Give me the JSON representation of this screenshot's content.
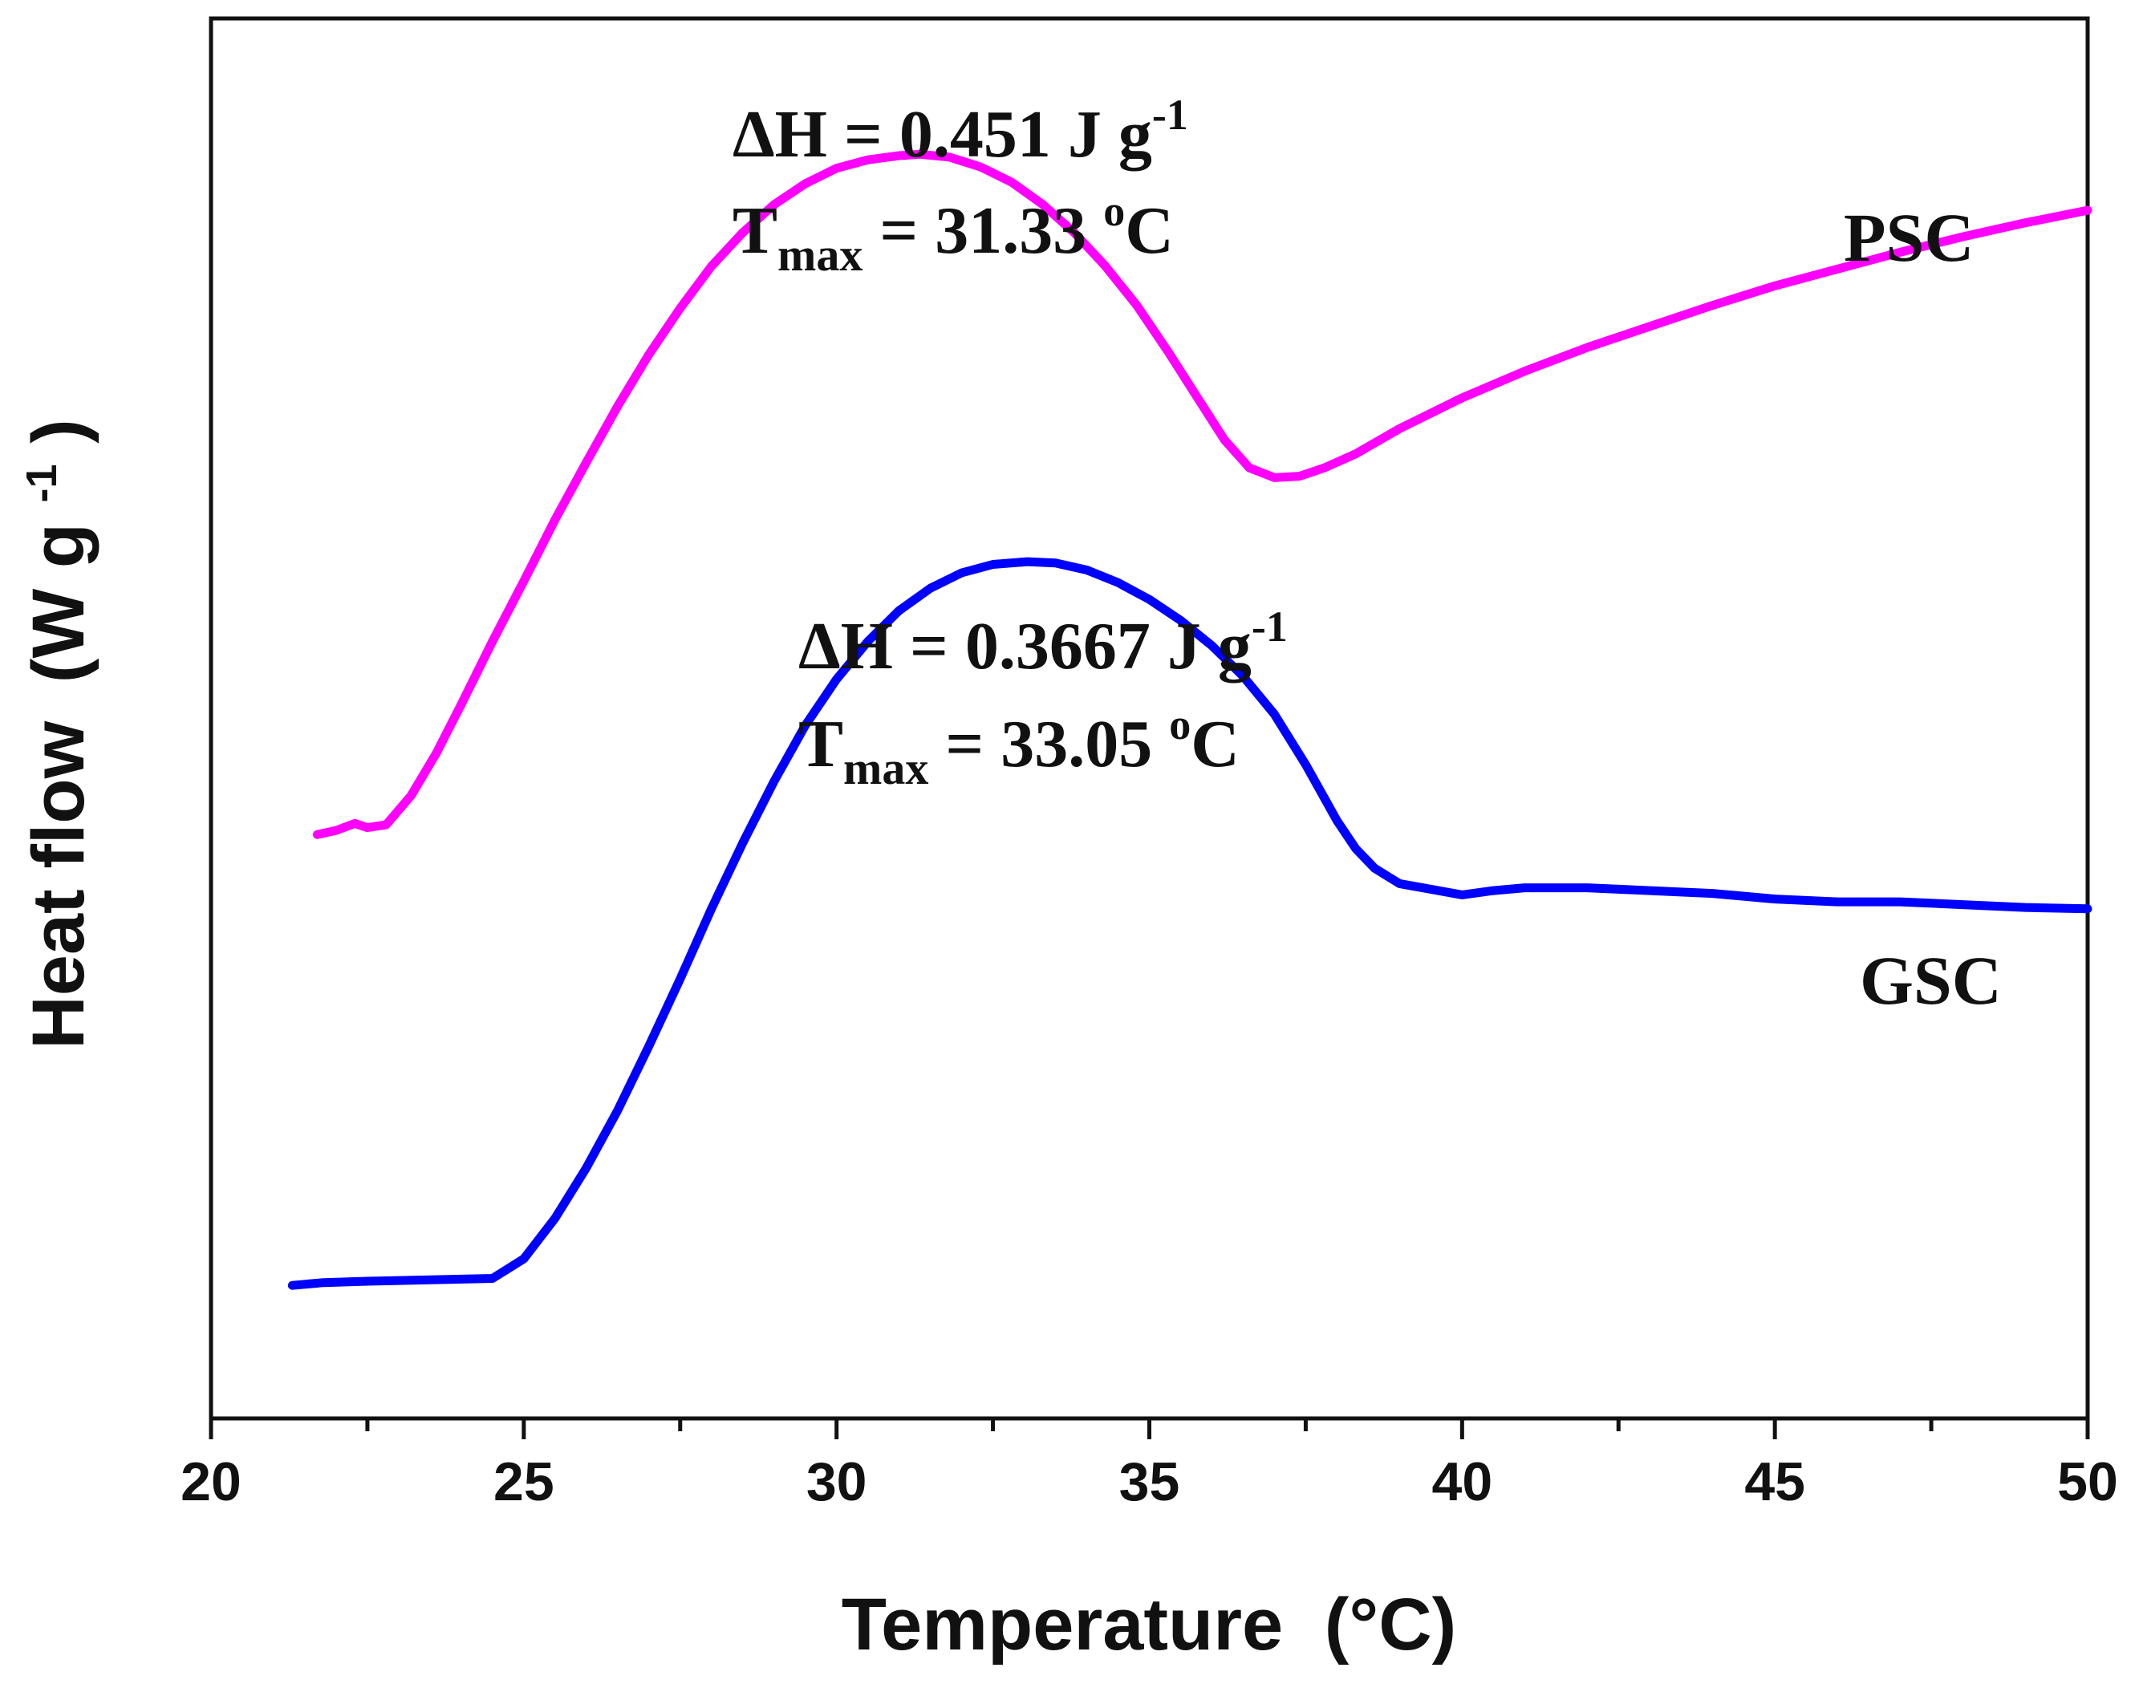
{
  "chart_data": {
    "type": "line",
    "title": "",
    "xlabel": "Temperature",
    "xlabel_unit": "(°C)",
    "ylabel": "Heat flow",
    "ylabel_unit": "(W g",
    "ylabel_unit_sup": "-1",
    "ylabel_unit_close": ")",
    "xlim": [
      20,
      50
    ],
    "ylim": [
      0,
      10
    ],
    "x_ticks": [
      20,
      25,
      30,
      35,
      40,
      45,
      50
    ],
    "x_tick_labels": [
      "20",
      "25",
      "30",
      "35",
      "40",
      "45",
      "50"
    ],
    "y_ticks_shown": false,
    "series": [
      {
        "name": "PSC",
        "color": "#ff00ff",
        "x": [
          21.7,
          22.0,
          22.3,
          22.5,
          22.8,
          23.2,
          23.6,
          24.0,
          24.5,
          25.0,
          25.5,
          26.0,
          26.5,
          27.0,
          27.5,
          28.0,
          28.5,
          29.0,
          29.5,
          30.0,
          30.5,
          31.0,
          31.33,
          31.8,
          32.3,
          32.8,
          33.3,
          33.8,
          34.3,
          34.8,
          35.3,
          35.8,
          36.2,
          36.6,
          37.0,
          37.4,
          37.8,
          38.3,
          39.0,
          40.0,
          41.0,
          42.0,
          43.0,
          44.0,
          45.0,
          46.0,
          47.0,
          48.0,
          49.0,
          50.0
        ],
        "y": [
          4.17,
          4.2,
          4.25,
          4.22,
          4.24,
          4.45,
          4.75,
          5.1,
          5.55,
          5.98,
          6.42,
          6.83,
          7.23,
          7.6,
          7.93,
          8.23,
          8.47,
          8.67,
          8.82,
          8.93,
          8.99,
          9.02,
          9.03,
          9.01,
          8.94,
          8.83,
          8.67,
          8.47,
          8.23,
          7.95,
          7.62,
          7.27,
          6.99,
          6.79,
          6.72,
          6.73,
          6.79,
          6.89,
          7.07,
          7.29,
          7.48,
          7.65,
          7.8,
          7.95,
          8.09,
          8.21,
          8.33,
          8.44,
          8.54,
          8.63
        ]
      },
      {
        "name": "GSC",
        "color": "#0000ff",
        "x": [
          21.3,
          21.8,
          22.5,
          23.5,
          24.5,
          25.0,
          25.5,
          26.0,
          26.5,
          27.0,
          27.5,
          28.0,
          28.5,
          29.0,
          29.5,
          30.0,
          30.5,
          31.0,
          31.5,
          32.0,
          32.5,
          33.05,
          33.5,
          34.0,
          34.5,
          35.0,
          35.5,
          36.0,
          36.5,
          37.0,
          37.5,
          38.0,
          38.3,
          38.6,
          39.0,
          39.5,
          40.0,
          40.5,
          41.0,
          42.0,
          43.0,
          44.0,
          45.0,
          46.0,
          47.0,
          48.0,
          49.0,
          50.0
        ],
        "y": [
          0.95,
          0.97,
          0.98,
          0.99,
          1.0,
          1.14,
          1.43,
          1.79,
          2.2,
          2.66,
          3.14,
          3.64,
          4.11,
          4.55,
          4.95,
          5.28,
          5.55,
          5.77,
          5.93,
          6.04,
          6.1,
          6.12,
          6.11,
          6.06,
          5.97,
          5.85,
          5.7,
          5.52,
          5.3,
          5.03,
          4.67,
          4.27,
          4.07,
          3.93,
          3.82,
          3.78,
          3.74,
          3.77,
          3.79,
          3.79,
          3.77,
          3.75,
          3.71,
          3.69,
          3.69,
          3.67,
          3.65,
          3.64
        ]
      }
    ],
    "annotations": [
      {
        "target": "PSC",
        "dH_prefix": "ΔH = 0.451 J g",
        "dH_sup": "-1",
        "t_main": "T",
        "t_sub": "max",
        "t_rest": " = 31.33 ",
        "t_sup": "o",
        "t_unit": "C"
      },
      {
        "target": "GSC",
        "dH_prefix": "ΔH = 0.3667 J g",
        "dH_sup": "-1",
        "t_main": "T",
        "t_sub": "max",
        "t_rest": " = 33.05 ",
        "t_sup": "o",
        "t_unit": "C"
      }
    ],
    "legend": "inline-right",
    "grid": false
  }
}
